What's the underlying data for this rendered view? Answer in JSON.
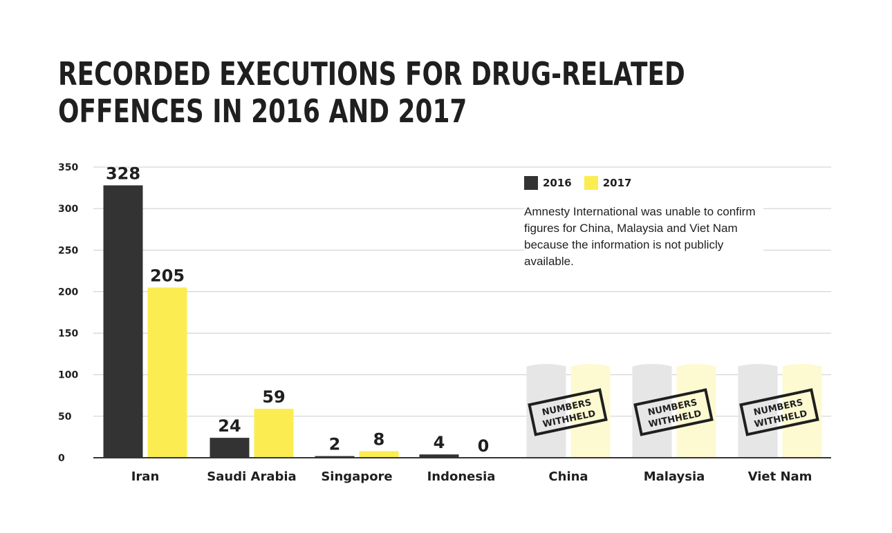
{
  "title_lines": [
    "RECORDED EXECUTIONS FOR DRUG-RELATED",
    "OFFENCES IN 2016 AND 2017"
  ],
  "note": "Amnesty International was unable to confirm figures for China, Malaysia and Viet Nam because the information is not publicly available.",
  "withheld_label_lines": [
    "NUMBERS",
    "WITHHELD"
  ],
  "colors": {
    "2016": "#333333",
    "2017": "#fbed51",
    "withheld_2016": "#e6e6e6",
    "withheld_2017": "#fdfad2",
    "grid": "#cccccc",
    "text": "#1f1f1f"
  },
  "chart_data": {
    "type": "bar",
    "categories": [
      "Iran",
      "Saudi Arabia",
      "Singapore",
      "Indonesia",
      "China",
      "Malaysia",
      "Viet Nam"
    ],
    "series": [
      {
        "name": "2016",
        "values": [
          328,
          24,
          2,
          4,
          null,
          null,
          null
        ]
      },
      {
        "name": "2017",
        "values": [
          205,
          59,
          8,
          0,
          null,
          null,
          null
        ]
      }
    ],
    "withheld_categories": [
      "China",
      "Malaysia",
      "Viet Nam"
    ],
    "data_labels": true,
    "ylim": [
      0,
      350
    ],
    "yticks": [
      0,
      50,
      100,
      150,
      200,
      250,
      300,
      350
    ],
    "grid": true,
    "legend_position": "top-right"
  }
}
